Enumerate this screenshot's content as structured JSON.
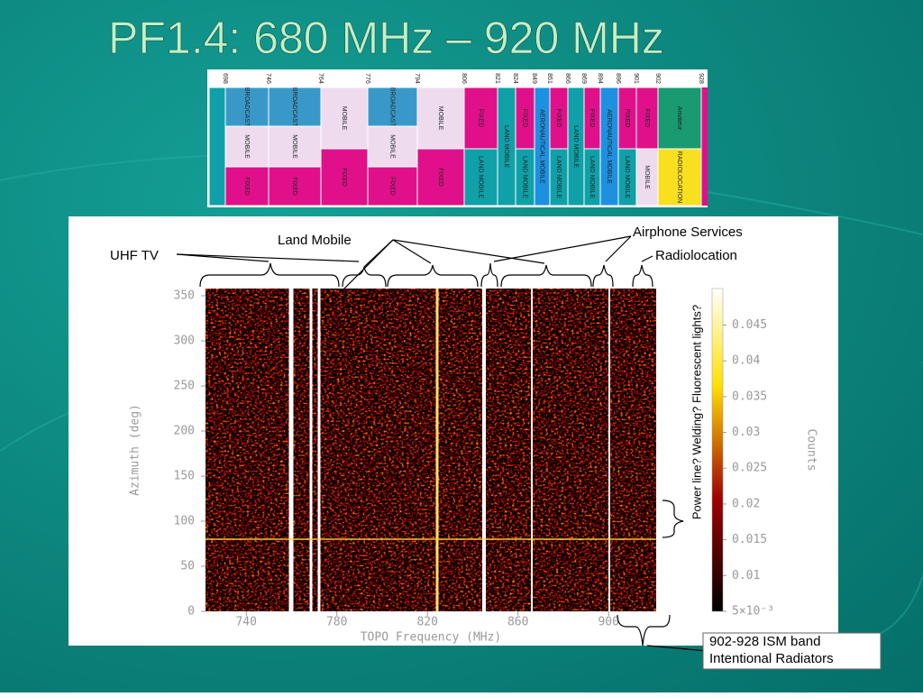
{
  "title": "PF1.4:  680 MHz – 920 MHz",
  "allocation": {
    "frequencies": [
      "698",
      "746",
      "764",
      "776",
      "794",
      "806",
      "821",
      "824",
      "849",
      "851",
      "866",
      "869",
      "894",
      "896",
      "901",
      "902",
      "928"
    ],
    "columns": [
      {
        "cells": [
          {
            "label": "BROADCAST"
          },
          {
            "label": "MOBILE"
          },
          {
            "label": "FIXED"
          }
        ]
      },
      {
        "cells": [
          {
            "label": "BROADCAST"
          },
          {
            "label": "MOBILE"
          },
          {
            "label": "FIXED"
          }
        ]
      },
      {
        "cells": [
          {
            "label": "MOBILE"
          },
          {
            "label": "FIXED"
          }
        ]
      },
      {
        "cells": [
          {
            "label": "BROADCAST"
          },
          {
            "label": "MOBILE"
          },
          {
            "label": "FIXED"
          }
        ]
      },
      {
        "cells": [
          {
            "label": "MOBILE"
          },
          {
            "label": "FIXED"
          }
        ]
      },
      {
        "cells": [
          {
            "label": "FIXED"
          },
          {
            "label": "LAND MOBILE"
          }
        ]
      },
      {
        "cells": [
          {
            "label": "LAND MOBILE"
          }
        ]
      },
      {
        "cells": [
          {
            "label": "FIXED"
          },
          {
            "label": "LAND MOBILE"
          }
        ]
      },
      {
        "cells": [
          {
            "label": "AERONAUTICAL MOBILE"
          }
        ]
      },
      {
        "cells": [
          {
            "label": "FIXED"
          },
          {
            "label": "LAND MOBILE"
          }
        ]
      },
      {
        "cells": [
          {
            "label": "LAND MOBILE"
          }
        ]
      },
      {
        "cells": [
          {
            "label": "FIXED"
          },
          {
            "label": "LAND MOBILE"
          }
        ]
      },
      {
        "cells": [
          {
            "label": "AERONAUTICAL MOBILE"
          }
        ]
      },
      {
        "cells": [
          {
            "label": "FIXED"
          },
          {
            "label": "LAND MOBILE"
          }
        ]
      },
      {
        "cells": [
          {
            "label": "FIXED"
          },
          {
            "label": "MOBILE"
          }
        ]
      },
      {
        "cells": [
          {
            "label": "Amateur"
          },
          {
            "label": "RADIOLOCATION"
          }
        ]
      }
    ]
  },
  "heatmap": {
    "xlabel": "TOPO Frequency (MHz)",
    "ylabel": "Azimuth (deg)",
    "xlim": [
      722,
      921
    ],
    "xticks": [
      740,
      780,
      820,
      860,
      900
    ],
    "ylim": [
      0,
      358
    ],
    "yticks": [
      0,
      50,
      100,
      150,
      200,
      250,
      300,
      350
    ],
    "colorbar": {
      "label": "Counts",
      "lim": [
        0.005,
        0.0501
      ],
      "ticks": [
        {
          "value": 0.005,
          "label": "5×10⁻³"
        },
        0.01,
        0.015,
        0.02,
        0.025,
        0.03,
        0.035,
        0.04,
        0.045
      ]
    }
  },
  "annotations": {
    "land_mobile": "Land Mobile",
    "uhf_tv": "UHF TV",
    "airphone": "Airphone Services",
    "radiolocation": "Radiolocation",
    "power_line": "Power line? Welding? Fluorescent lights?",
    "ism": [
      "902-928 ISM band",
      "Intentional Radiators"
    ]
  }
}
